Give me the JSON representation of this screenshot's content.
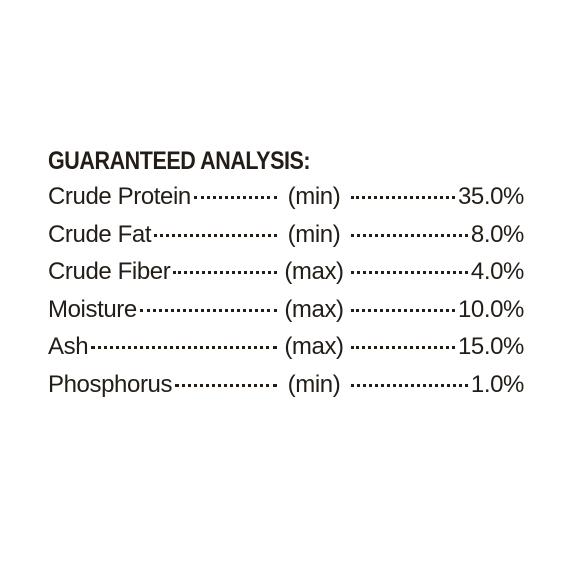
{
  "title": "GUARANTEED ANALYSIS:",
  "rows": [
    {
      "name": "Crude Protein",
      "qualifier": "(min)",
      "value": "35.0%"
    },
    {
      "name": "Crude Fat",
      "qualifier": "(min)",
      "value": "8.0%"
    },
    {
      "name": "Crude Fiber",
      "qualifier": "(max)",
      "value": "4.0%"
    },
    {
      "name": "Moisture",
      "qualifier": "(max)",
      "value": "10.0%"
    },
    {
      "name": "Ash",
      "qualifier": "(max)",
      "value": "15.0%"
    },
    {
      "name": "Phosphorus",
      "qualifier": "(min)",
      "value": "1.0%"
    }
  ]
}
